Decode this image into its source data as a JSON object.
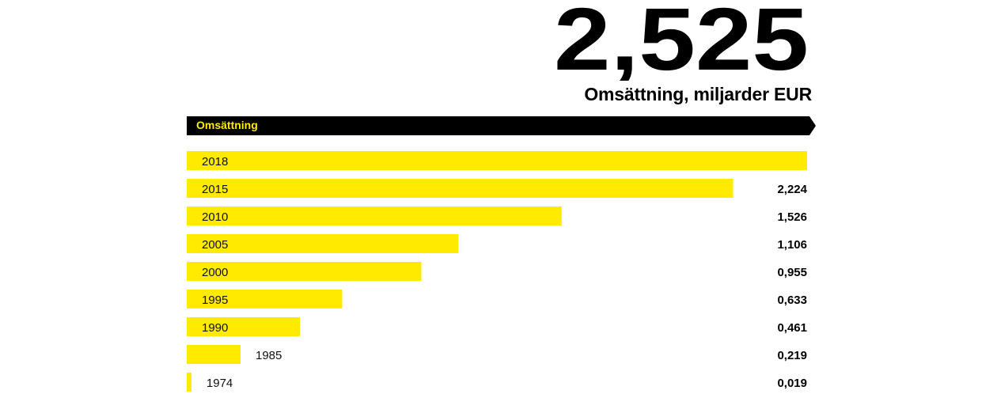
{
  "headline": {
    "value": "2,525",
    "caption": "Omsättning, miljarder EUR"
  },
  "banner": {
    "label": "Omsättning"
  },
  "colors": {
    "bar": "#ffea00",
    "banner": "#000000",
    "banner_text": "#ffea00"
  },
  "chart_data": {
    "type": "bar",
    "orientation": "horizontal",
    "title": "Omsättning",
    "unit": "miljarder EUR",
    "categories": [
      "2018",
      "2015",
      "2010",
      "2005",
      "2000",
      "1995",
      "1990",
      "1985",
      "1974"
    ],
    "values": [
      2.525,
      2.224,
      1.526,
      1.106,
      0.955,
      0.633,
      0.461,
      0.219,
      0.019
    ],
    "value_labels": [
      "",
      "2,224",
      "1,526",
      "1,106",
      "0,955",
      "0,633",
      "0,461",
      "0,219",
      "0,019"
    ],
    "xlim": [
      0,
      2.525
    ],
    "grid": false,
    "legend": "none"
  }
}
